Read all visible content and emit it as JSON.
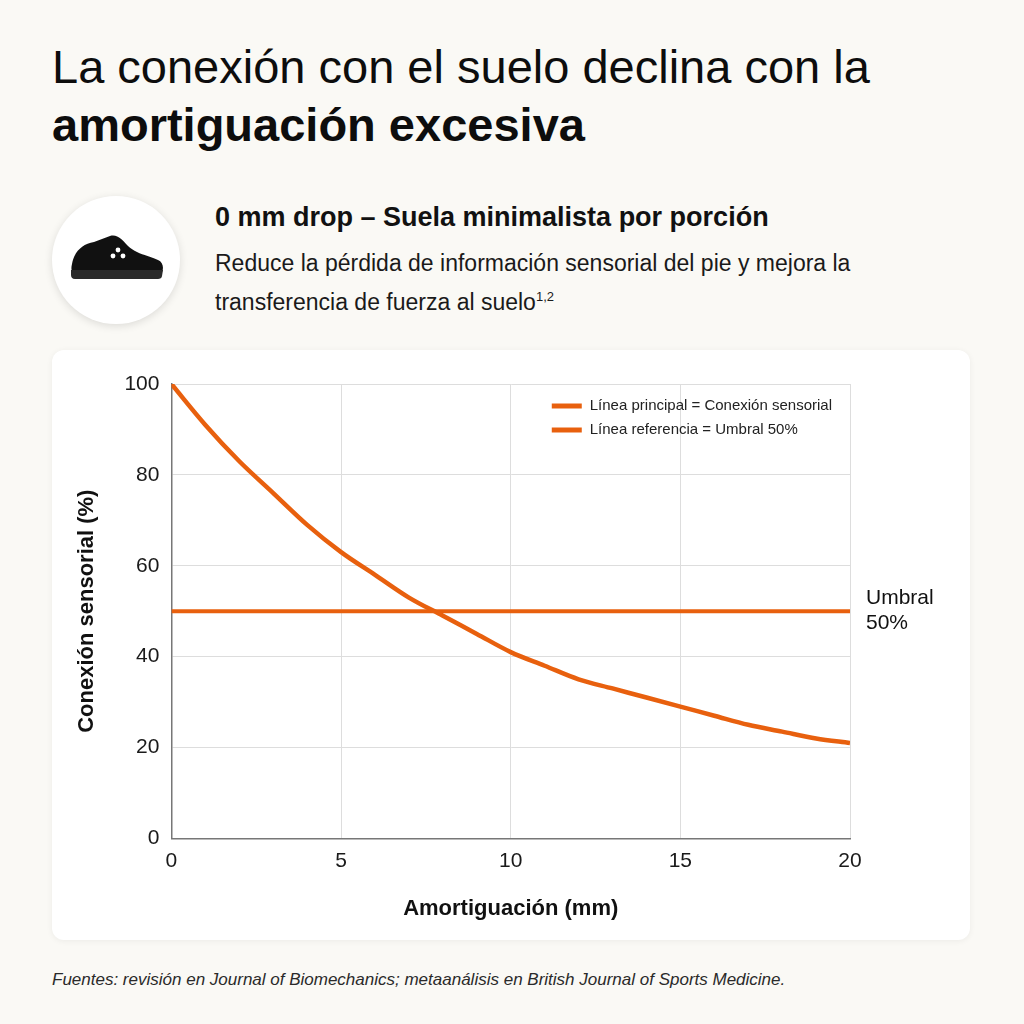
{
  "chart_data": {
    "type": "line",
    "title": "La conexión con el suelo declina con la amortiguación excesiva",
    "subtitle": "0 mm drop – Suela minimalista por porción",
    "description": "Reduce la pérdida de información sensorial del pie y mejora la transferencia de fuerza al suelo",
    "description_refs": "1,2",
    "source": "Fuentes: revisión en Journal of Biomechanics; metaanálisis en British Journal of Sports Medicine.",
    "x_label": "Amortiguación (mm)",
    "y_label": "Conexión sensorial (%)",
    "x": [
      0,
      1,
      2,
      3,
      4,
      5,
      6,
      7,
      8,
      9,
      10,
      11,
      12,
      13,
      14,
      15,
      16,
      17,
      18,
      19,
      20
    ],
    "series": [
      {
        "name": "Línea principal = Conexión sensorial",
        "color": "#e8600e",
        "values": [
          100,
          91,
          83,
          76,
          69,
          63,
          58,
          53,
          49,
          45,
          41,
          38,
          35,
          33,
          31,
          29,
          27,
          25,
          23.5,
          22,
          21
        ]
      },
      {
        "name": "Línea referencia = Umbral 50%",
        "color": "#e8600e",
        "values": [
          50,
          50,
          50,
          50,
          50,
          50,
          50,
          50,
          50,
          50,
          50,
          50,
          50,
          50,
          50,
          50,
          50,
          50,
          50,
          50,
          50
        ]
      }
    ],
    "annotations": [
      {
        "text": "Umbral 50%",
        "x": 20,
        "y": 50
      }
    ],
    "xlim": [
      0,
      20
    ],
    "xticks": [
      0,
      5,
      10,
      15,
      20
    ],
    "ylim": [
      0,
      100
    ],
    "yticks": [
      0,
      20,
      40,
      60,
      80,
      100
    ],
    "grid": true,
    "legend": "upper right"
  }
}
